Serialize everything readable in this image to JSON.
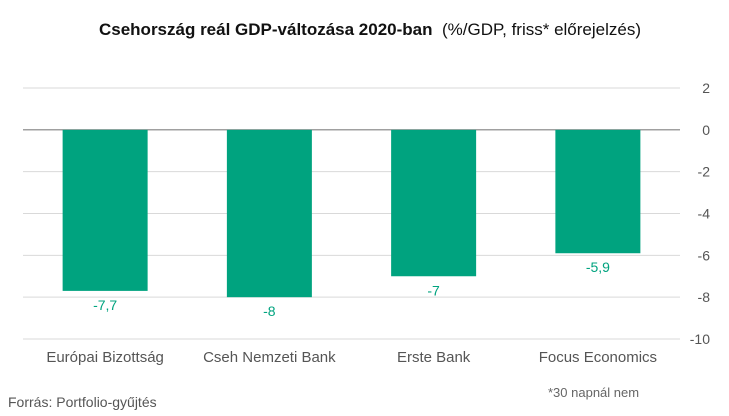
{
  "title": {
    "bold": "Csehország reál GDP-változása 2020-ban",
    "normal": "(%/GDP, friss* előrejelzés)"
  },
  "source": "Forrás: Portfolio-gyűjtés",
  "footnote": "*30 napnál nem",
  "colors": {
    "bar": "#00a37f",
    "label": "#00a37f",
    "grid": "#d9d9d9",
    "axis_text": "#555555",
    "zero": "#808080"
  },
  "chart_data": {
    "type": "bar",
    "title": "Csehország reál GDP-változása 2020-ban (%/GDP, friss* előrejelzés)",
    "categories": [
      "Európai Bizottság",
      "Cseh Nemzeti Bank",
      "Erste Bank",
      "Focus Economics"
    ],
    "values": [
      -7.7,
      -8,
      -7,
      -5.9
    ],
    "data_labels": [
      "-7,7",
      "-8",
      "-7",
      "-5,9"
    ],
    "ylim": [
      -10,
      2
    ],
    "yticks": [
      2,
      0,
      -2,
      -4,
      -6,
      -8,
      -10
    ],
    "ytick_labels": [
      "2",
      "0",
      "-2",
      "-4",
      "-6",
      "-8",
      "-10"
    ],
    "y_axis_position": "right",
    "grid": true,
    "xlabel": "",
    "ylabel": ""
  }
}
